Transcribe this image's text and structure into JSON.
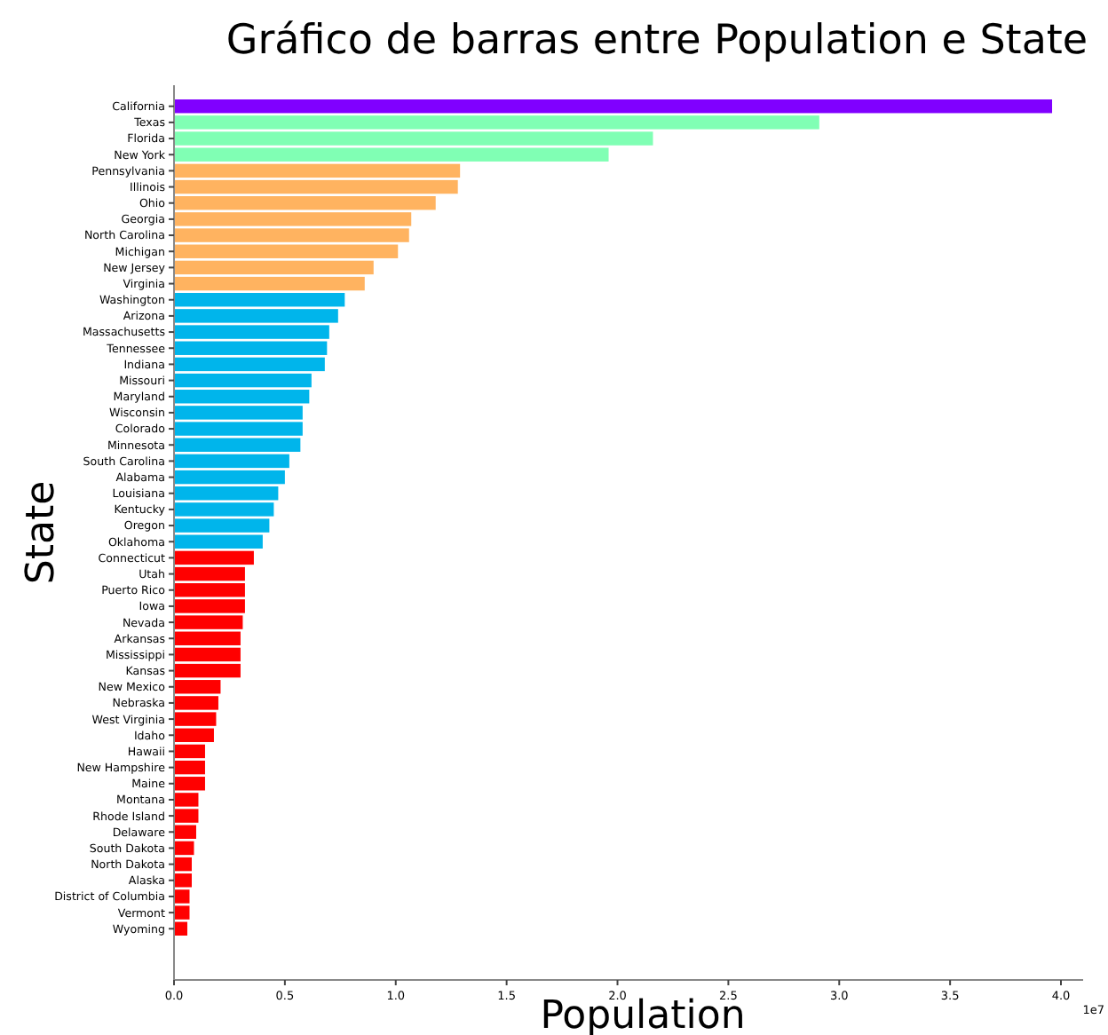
{
  "chart_data": {
    "type": "bar",
    "orientation": "horizontal",
    "title": "Gráfico de barras entre Population e State",
    "xlabel": "Population",
    "ylabel": "State",
    "categories": [
      "California",
      "Texas",
      "Florida",
      "New York",
      "Pennsylvania",
      "Illinois",
      "Ohio",
      "Georgia",
      "North Carolina",
      "Michigan",
      "New Jersey",
      "Virginia",
      "Washington",
      "Arizona",
      "Massachusetts",
      "Tennessee",
      "Indiana",
      "Missouri",
      "Maryland",
      "Wisconsin",
      "Colorado",
      "Minnesota",
      "South Carolina",
      "Alabama",
      "Louisiana",
      "Kentucky",
      "Oregon",
      "Oklahoma",
      "Connecticut",
      "Utah",
      "Puerto Rico",
      "Iowa",
      "Nevada",
      "Arkansas",
      "Mississippi",
      "Kansas",
      "New Mexico",
      "Nebraska",
      "West Virginia",
      "Idaho",
      "Hawaii",
      "New Hampshire",
      "Maine",
      "Montana",
      "Rhode Island",
      "Delaware",
      "South Dakota",
      "North Dakota",
      "Alaska",
      "District of Columbia",
      "Vermont",
      "Wyoming"
    ],
    "values": [
      3.96,
      2.91,
      2.16,
      1.96,
      1.29,
      1.28,
      1.18,
      1.07,
      1.06,
      1.01,
      0.9,
      0.86,
      0.77,
      0.74,
      0.7,
      0.69,
      0.68,
      0.62,
      0.61,
      0.58,
      0.58,
      0.57,
      0.52,
      0.5,
      0.47,
      0.45,
      0.43,
      0.4,
      0.36,
      0.32,
      0.32,
      0.32,
      0.31,
      0.3,
      0.3,
      0.3,
      0.21,
      0.2,
      0.19,
      0.18,
      0.14,
      0.14,
      0.14,
      0.11,
      0.11,
      0.1,
      0.09,
      0.08,
      0.08,
      0.07,
      0.07,
      0.06
    ],
    "colors": [
      "#8000ff",
      "#80ffb4",
      "#80ffb4",
      "#80ffb4",
      "#ffb360",
      "#ffb360",
      "#ffb360",
      "#ffb360",
      "#ffb360",
      "#ffb360",
      "#ffb360",
      "#ffb360",
      "#00b5eb",
      "#00b5eb",
      "#00b5eb",
      "#00b5eb",
      "#00b5eb",
      "#00b5eb",
      "#00b5eb",
      "#00b5eb",
      "#00b5eb",
      "#00b5eb",
      "#00b5eb",
      "#00b5eb",
      "#00b5eb",
      "#00b5eb",
      "#00b5eb",
      "#00b5eb",
      "#ff0000",
      "#ff0000",
      "#ff0000",
      "#ff0000",
      "#ff0000",
      "#ff0000",
      "#ff0000",
      "#ff0000",
      "#ff0000",
      "#ff0000",
      "#ff0000",
      "#ff0000",
      "#ff0000",
      "#ff0000",
      "#ff0000",
      "#ff0000",
      "#ff0000",
      "#ff0000",
      "#ff0000",
      "#ff0000",
      "#ff0000",
      "#ff0000",
      "#ff0000",
      "#ff0000"
    ],
    "xlim": [
      0,
      4.1
    ],
    "xticks": [
      {
        "value": 0,
        "label": "0.0"
      },
      {
        "value": 0.5,
        "label": "0.5"
      },
      {
        "value": 1,
        "label": "1.0"
      },
      {
        "value": 1.5,
        "label": "1.5"
      },
      {
        "value": 2,
        "label": "2.0"
      },
      {
        "value": 2.5,
        "label": "2.5"
      },
      {
        "value": 3,
        "label": "3.0"
      },
      {
        "value": 3.5,
        "label": "3.5"
      },
      {
        "value": 4,
        "label": "4.0"
      }
    ],
    "annotations": [
      "1e7"
    ],
    "grid": false
  }
}
